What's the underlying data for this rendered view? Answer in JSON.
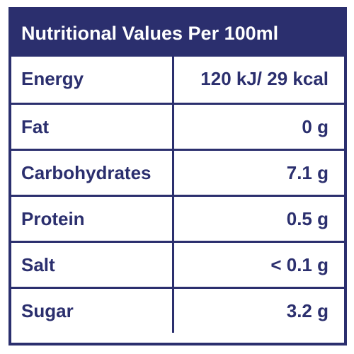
{
  "table": {
    "title": "Nutritional Values Per 100ml",
    "rows": [
      [
        "Energy",
        "120 kJ/ 29 kcal"
      ],
      [
        "Fat",
        "0 g"
      ],
      [
        "Carbohydrates",
        "7.1 g"
      ],
      [
        "Protein",
        "0.5 g"
      ],
      [
        "Salt",
        "< 0.1 g"
      ],
      [
        "Sugar",
        "3.2 g"
      ]
    ]
  }
}
